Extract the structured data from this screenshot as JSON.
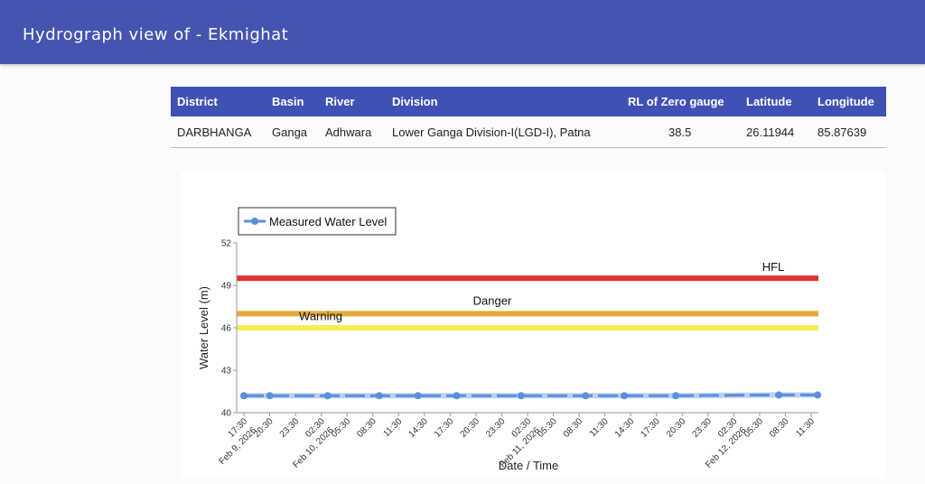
{
  "page": {
    "title": "Hydrograph view of - Ekmighat"
  },
  "station_table": {
    "headers": [
      "District",
      "Basin",
      "River",
      "Division",
      "RL of Zero gauge",
      "Latitude",
      "Longitude"
    ],
    "row": [
      "DARBHANGA",
      "Ganga",
      "Adhwara",
      "Lower Ganga Division-I(LGD-I), Patna",
      "38.5",
      "26.11944",
      "85.87639"
    ]
  },
  "chart_data": {
    "type": "line",
    "xlabel": "Date / Time",
    "ylabel": "Water Level (m)",
    "ylim": [
      40,
      52
    ],
    "y_ticks": [
      "40",
      "43",
      "46",
      "49",
      "52"
    ],
    "x_ticks": [
      "17:30",
      "20:30",
      "23:30",
      "02:30",
      "05:30",
      "08:30",
      "11:30",
      "14:30",
      "17:30",
      "20:30",
      "23:30",
      "02:30",
      "05:30",
      "08:30",
      "11:30",
      "14:30",
      "17:30",
      "20:30",
      "23:30",
      "02:30",
      "05:30",
      "08:30",
      "11:30"
    ],
    "date_labels": [
      {
        "label": "Feb 9, 2026",
        "tick_index": 0
      },
      {
        "label": "Feb 10, 2026",
        "tick_index": 3
      },
      {
        "label": "Feb 11, 2026",
        "tick_index": 11
      },
      {
        "label": "Feb 12, 2026",
        "tick_index": 19
      }
    ],
    "legend": {
      "entries": [
        "Measured Water Level"
      ],
      "placement": "top-left"
    },
    "series": [
      {
        "name": "Measured Water Level",
        "color": "#5b8fd8",
        "style": "dashed",
        "x_tick_positions": [
          0,
          1,
          3.25,
          5.25,
          6.75,
          8.25,
          10.75,
          13.25,
          14.75,
          16.75,
          20.75,
          22.25
        ],
        "values": [
          41.2,
          41.2,
          41.2,
          41.2,
          41.2,
          41.2,
          41.2,
          41.2,
          41.2,
          41.2,
          41.25,
          41.25
        ]
      }
    ],
    "reference_lines": [
      {
        "label": "HFL",
        "value": 49.5,
        "color": "#e0322c"
      },
      {
        "label": "Danger",
        "value": 47.0,
        "color": "#e4a93a"
      },
      {
        "label": "Warning",
        "value": 46.0,
        "color": "#f4ee5c"
      }
    ]
  }
}
